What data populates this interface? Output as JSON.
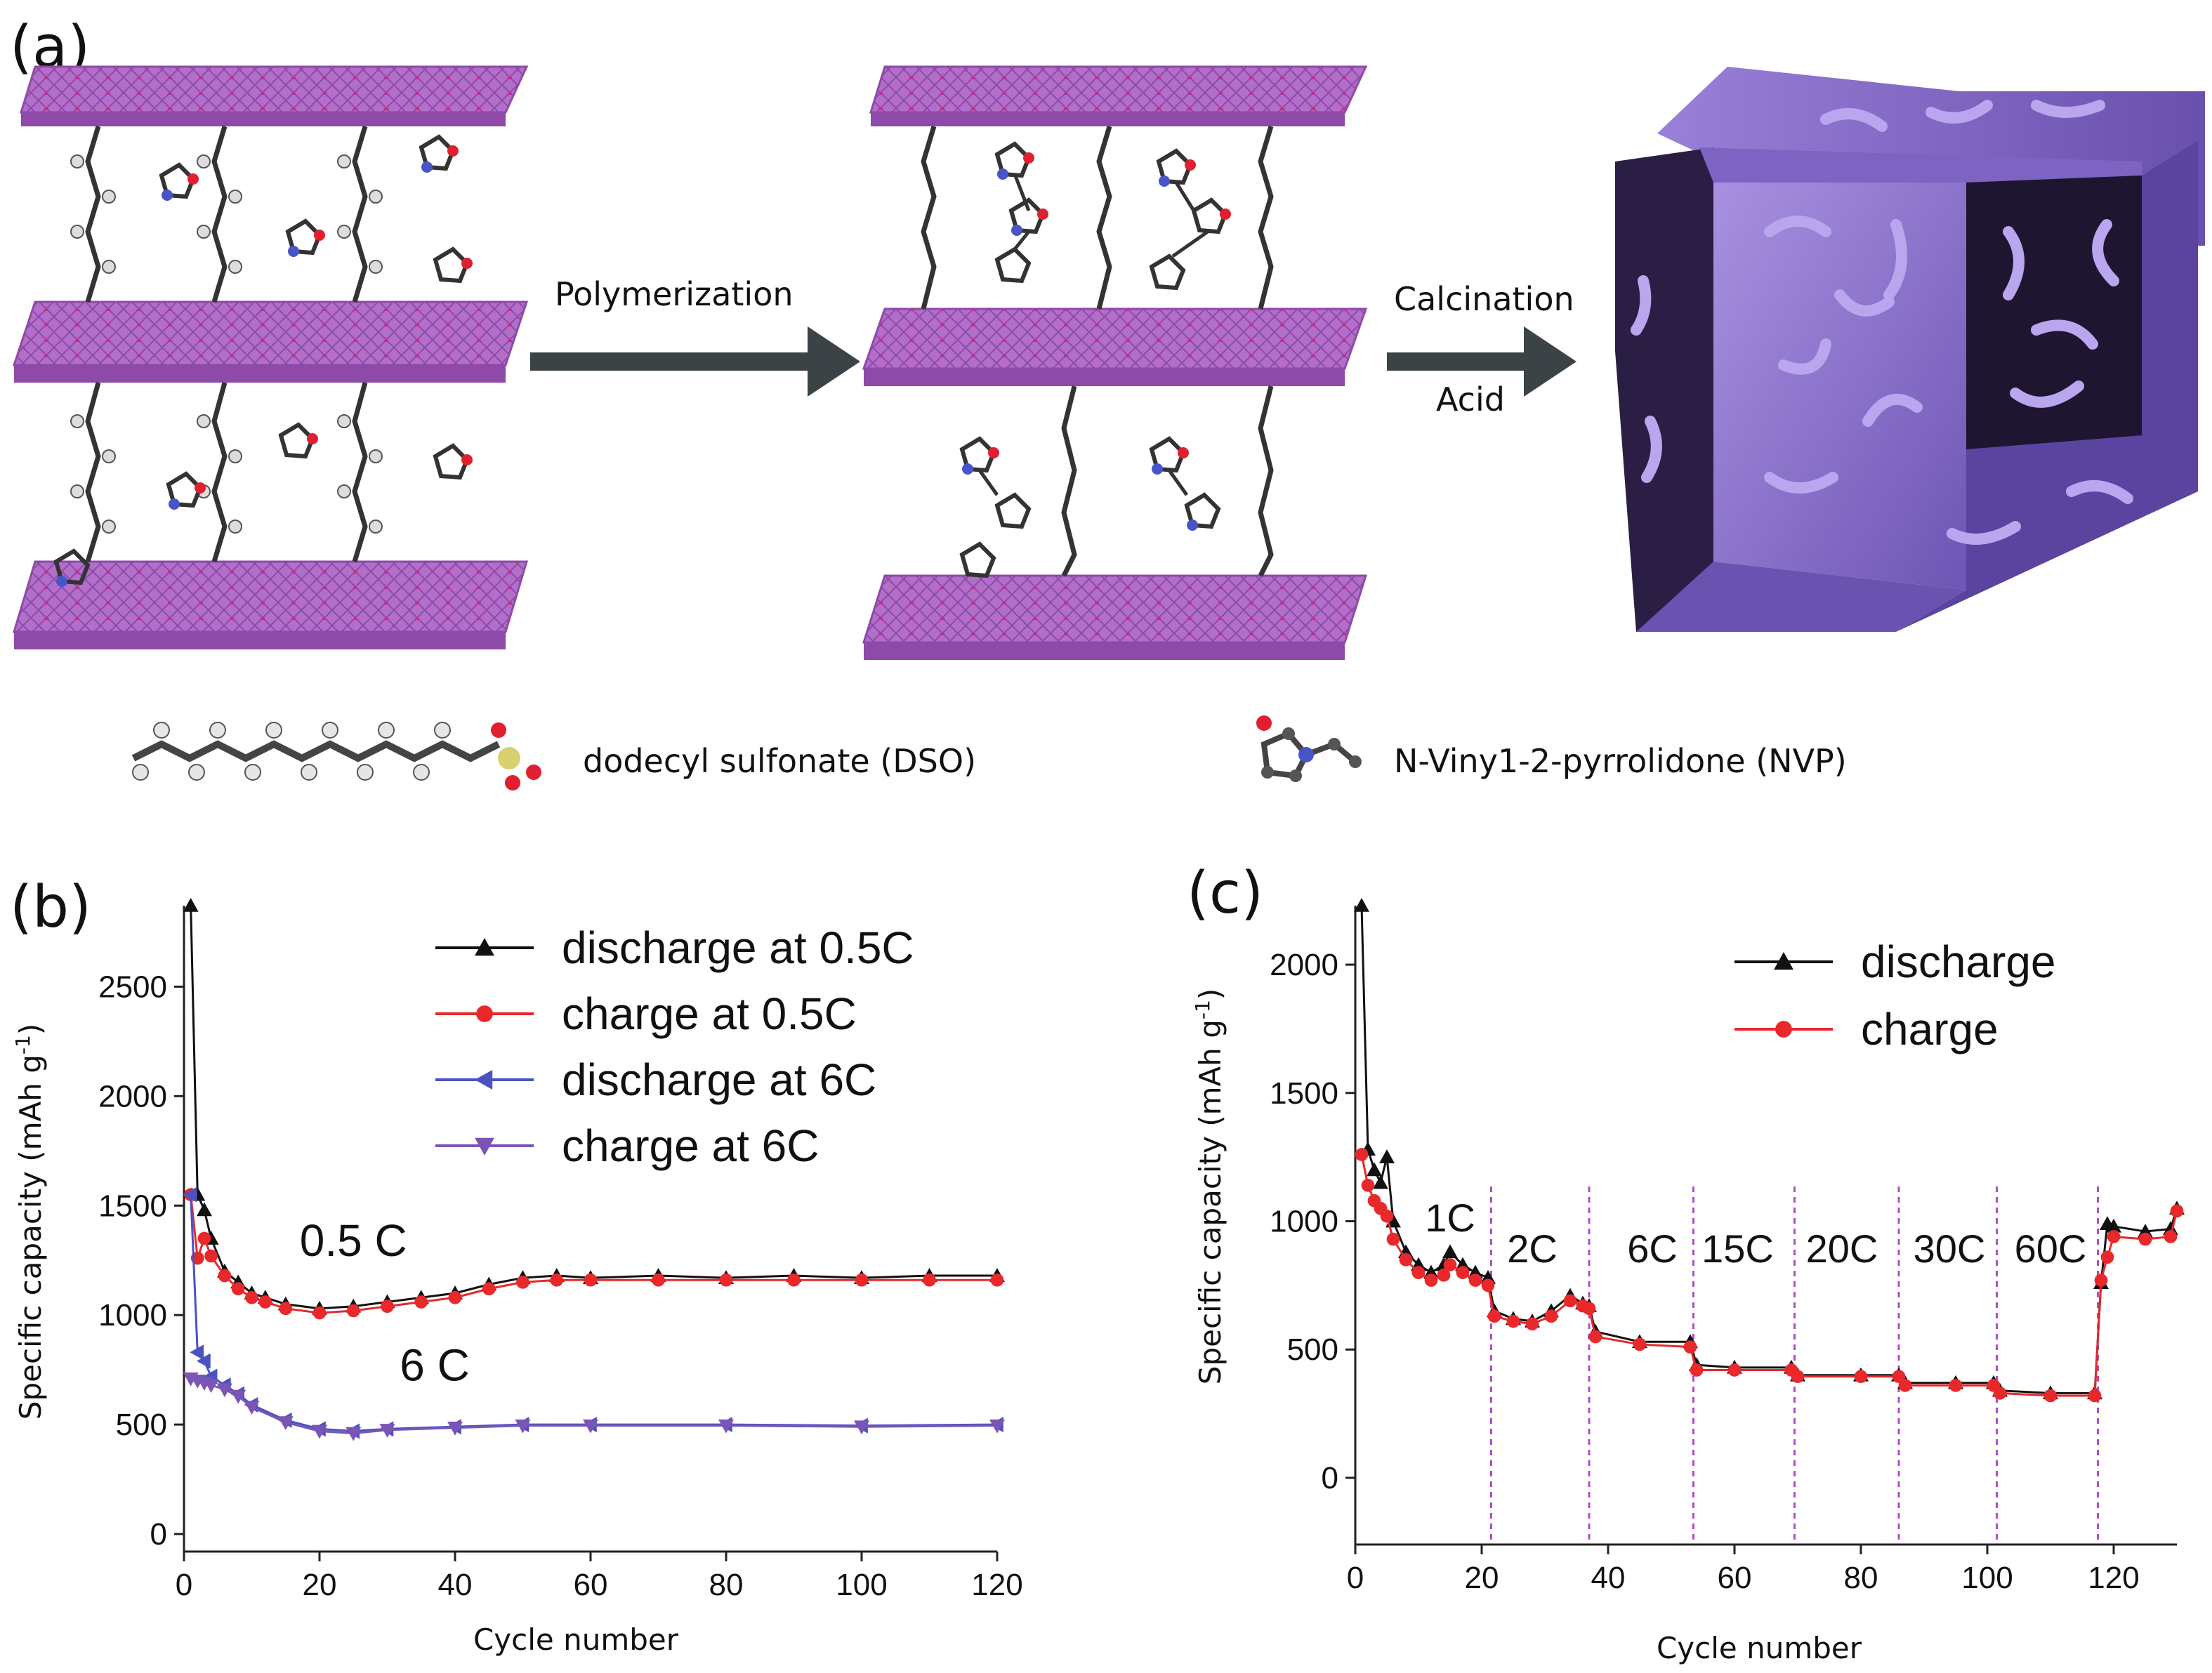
{
  "panel_a": {
    "label": "(a)",
    "arrow1_label": "Polymerization",
    "arrow2_label_top": "Calcination",
    "arrow2_label_bottom": "Acid",
    "legend_dso": "dodecyl sulfonate (DSO)",
    "legend_nvp": "N-Viny1-2-pyrrolidone (NVP)",
    "colors": {
      "layer": "#b36ec9",
      "layer_dark": "#8e4aa8",
      "cube": "#8a6fc9",
      "cube_dark": "#2a1e44",
      "arrow": "#3c4347"
    }
  },
  "chart_data": [
    {
      "type": "line",
      "panel_label": "(b)",
      "xlabel": "Cycle number",
      "ylabel": "Specific capacity (mAh g",
      "ylabel_sup": "-1",
      "ylabel_close": ")",
      "xlim": [
        0,
        120
      ],
      "ylim": [
        -80,
        2870
      ],
      "xticks": [
        0,
        20,
        40,
        60,
        80,
        100,
        120
      ],
      "yticks": [
        0,
        500,
        1000,
        1500,
        2000,
        2500
      ],
      "annotations": [
        {
          "text": "0.5 C",
          "x": 25,
          "y": 1270
        },
        {
          "text": "6 C",
          "x": 37,
          "y": 700
        }
      ],
      "series": [
        {
          "name": "discharge at 0.5C",
          "color": "#111111",
          "marker": "triangle-up",
          "x": [
            1,
            2,
            3,
            4,
            6,
            8,
            10,
            12,
            15,
            20,
            25,
            30,
            35,
            40,
            45,
            50,
            55,
            60,
            70,
            80,
            90,
            100,
            110,
            120
          ],
          "y": [
            2870,
            1550,
            1480,
            1350,
            1200,
            1150,
            1100,
            1080,
            1050,
            1030,
            1040,
            1060,
            1080,
            1100,
            1140,
            1170,
            1180,
            1170,
            1180,
            1170,
            1180,
            1170,
            1180,
            1180
          ]
        },
        {
          "name": "charge at 0.5C",
          "color": "#e8282b",
          "marker": "circle",
          "x": [
            1,
            2,
            3,
            4,
            6,
            8,
            10,
            12,
            15,
            20,
            25,
            30,
            35,
            40,
            45,
            50,
            55,
            60,
            70,
            80,
            90,
            100,
            110,
            120
          ],
          "y": [
            1550,
            1260,
            1350,
            1270,
            1180,
            1120,
            1080,
            1060,
            1030,
            1010,
            1020,
            1040,
            1060,
            1080,
            1120,
            1150,
            1160,
            1160,
            1160,
            1160,
            1160,
            1160,
            1160,
            1160
          ]
        },
        {
          "name": "discharge at 6C",
          "color": "#4a52c2",
          "marker": "triangle-left",
          "x": [
            1,
            2,
            3,
            4,
            6,
            8,
            10,
            15,
            20,
            25,
            30,
            40,
            50,
            60,
            80,
            100,
            120
          ],
          "y": [
            1550,
            830,
            790,
            720,
            680,
            640,
            590,
            520,
            480,
            470,
            480,
            490,
            500,
            500,
            500,
            495,
            500
          ]
        },
        {
          "name": "charge at 6C",
          "color": "#7b55b5",
          "marker": "triangle-down",
          "x": [
            1,
            2,
            3,
            4,
            6,
            8,
            10,
            15,
            20,
            25,
            30,
            40,
            50,
            60,
            80,
            100,
            120
          ],
          "y": [
            710,
            700,
            690,
            680,
            660,
            630,
            580,
            510,
            470,
            460,
            475,
            485,
            495,
            495,
            495,
            490,
            495
          ]
        }
      ]
    },
    {
      "type": "line",
      "panel_label": "(c)",
      "xlabel": "Cycle number",
      "ylabel": "Specific capacity (mAh g",
      "ylabel_sup": "-1",
      "ylabel_close": ")",
      "xlim": [
        0,
        130
      ],
      "ylim": [
        -260,
        2230
      ],
      "xticks": [
        0,
        20,
        40,
        60,
        80,
        100,
        120
      ],
      "yticks": [
        0,
        500,
        1000,
        1500,
        2000
      ],
      "rate_boundaries": [
        21.5,
        37,
        53.5,
        69.5,
        86,
        101.5,
        117.5
      ],
      "rate_labels": [
        {
          "text": "1C",
          "x": 15,
          "y": 960
        },
        {
          "text": "2C",
          "x": 28,
          "y": 840
        },
        {
          "text": "6C",
          "x": 47,
          "y": 840
        },
        {
          "text": "15C",
          "x": 60.5,
          "y": 840
        },
        {
          "text": "20C",
          "x": 77,
          "y": 840
        },
        {
          "text": "30C",
          "x": 94,
          "y": 840
        },
        {
          "text": "60C",
          "x": 110,
          "y": 840
        }
      ],
      "series": [
        {
          "name": "discharge",
          "color": "#111111",
          "marker": "triangle-up",
          "x": [
            1,
            2,
            3,
            4,
            5,
            6,
            8,
            10,
            12,
            14,
            15,
            17,
            19,
            21,
            22,
            25,
            28,
            31,
            34,
            36,
            37,
            38,
            45,
            53,
            54,
            60,
            69,
            70,
            80,
            86,
            87,
            95,
            101,
            102,
            110,
            117,
            118,
            119,
            120,
            125,
            129,
            130
          ],
          "y": [
            2230,
            1280,
            1200,
            1150,
            1250,
            1000,
            880,
            830,
            800,
            830,
            880,
            830,
            800,
            780,
            650,
            620,
            610,
            650,
            710,
            680,
            670,
            570,
            530,
            530,
            440,
            430,
            430,
            400,
            400,
            400,
            370,
            370,
            370,
            340,
            330,
            330,
            760,
            990,
            980,
            960,
            970,
            1050
          ]
        },
        {
          "name": "charge",
          "color": "#e8282b",
          "marker": "circle",
          "x": [
            1,
            2,
            3,
            4,
            5,
            6,
            8,
            10,
            12,
            14,
            15,
            17,
            19,
            21,
            22,
            25,
            28,
            31,
            34,
            36,
            37,
            38,
            45,
            53,
            54,
            60,
            69,
            70,
            80,
            86,
            87,
            95,
            101,
            102,
            110,
            117,
            118,
            119,
            120,
            125,
            129,
            130
          ],
          "y": [
            1260,
            1140,
            1080,
            1050,
            1020,
            930,
            850,
            800,
            770,
            790,
            830,
            800,
            770,
            750,
            630,
            610,
            600,
            630,
            690,
            670,
            660,
            550,
            520,
            510,
            420,
            420,
            420,
            395,
            395,
            395,
            360,
            360,
            360,
            330,
            320,
            320,
            770,
            860,
            940,
            930,
            940,
            1040
          ]
        }
      ]
    }
  ]
}
